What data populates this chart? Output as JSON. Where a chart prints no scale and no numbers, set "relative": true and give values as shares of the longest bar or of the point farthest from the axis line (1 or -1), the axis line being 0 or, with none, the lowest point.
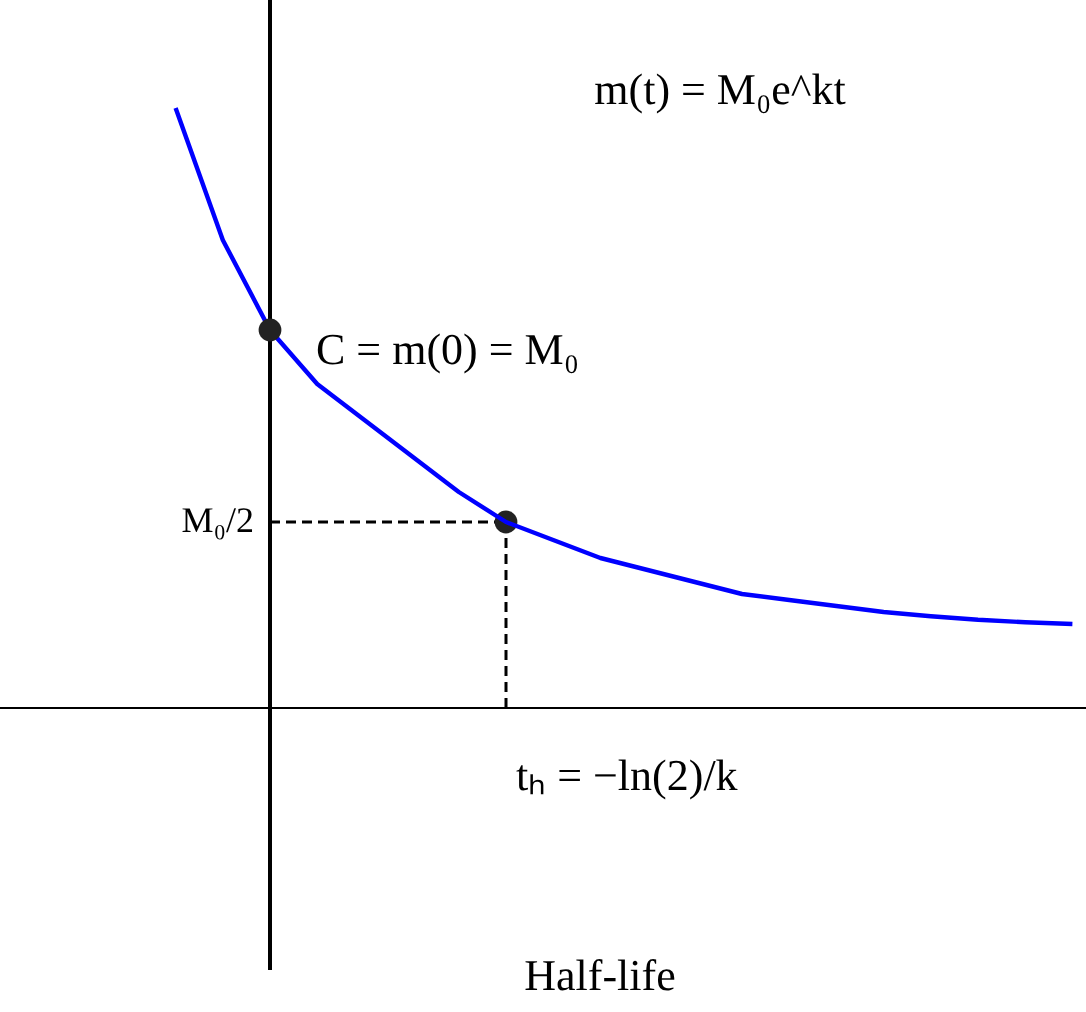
{
  "chart_data": {
    "type": "line",
    "title": "Half-life",
    "relative": true,
    "categories": [
      null,
      null,
      null,
      null,
      null,
      null,
      null,
      null,
      null,
      null,
      null,
      null,
      null,
      null,
      null,
      null,
      null,
      null,
      null,
      null
    ],
    "series": [
      {
        "color": "#0000ff",
        "values": [
          1,
          0.78,
          0.63,
          0.54,
          0.48,
          0.42,
          0.36,
          0.31,
          0.28,
          0.25,
          0.23,
          0.21,
          0.19,
          0.18,
          0.17,
          0.16,
          0.153,
          0.147,
          0.143,
          0.14
        ]
      }
    ],
    "ref_lines": [
      {
        "axis": "y",
        "value": 0.31,
        "label": "M₀/2",
        "line_style": "dashed",
        "color": "#000000"
      }
    ],
    "annotations": [
      "m(t) = M₀e^kt",
      "C = m(0) = M₀",
      "tₕ = −ln(2)/k"
    ]
  }
}
